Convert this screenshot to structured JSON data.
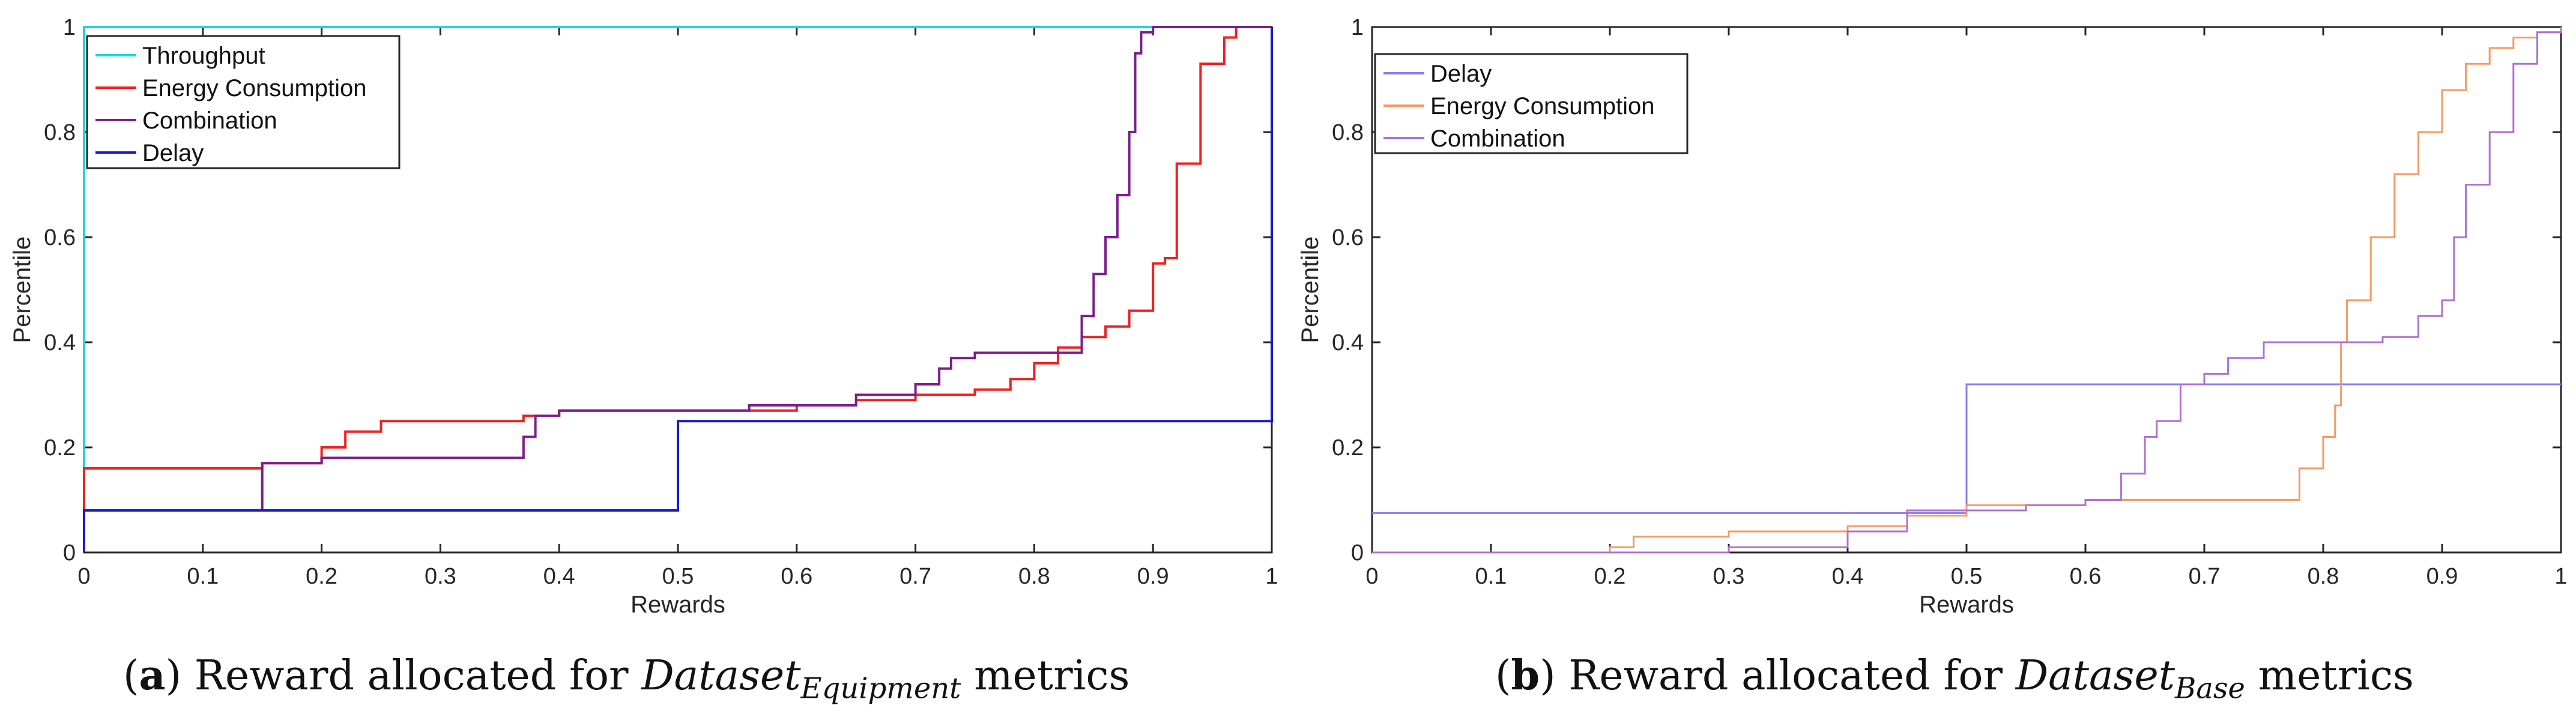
{
  "captions": [
    {
      "label": "a",
      "pre": "Reward allocated for",
      "dataset": "Dataset",
      "sub": "Equipment",
      "post": "metrics"
    },
    {
      "label": "b",
      "pre": "Reward allocated for",
      "dataset": "Dataset",
      "sub": "Base",
      "post": "metrics"
    }
  ],
  "chart_data": [
    {
      "type": "line",
      "subtype": "step-cdf",
      "title": "",
      "xlabel": "Rewards",
      "ylabel": "Percentile",
      "xlim": [
        0,
        1
      ],
      "ylim": [
        0,
        1
      ],
      "xticks": [
        "0",
        "0.1",
        "0.2",
        "0.3",
        "0.4",
        "0.5",
        "0.6",
        "0.7",
        "0.8",
        "0.9",
        "1"
      ],
      "yticks": [
        "0",
        "0.2",
        "0.4",
        "0.6",
        "0.8",
        "1"
      ],
      "legend_position": "top-left",
      "series": [
        {
          "name": "Throughput",
          "color": "#22d4d4",
          "x": [
            0,
            0,
            0.84,
            1,
            1
          ],
          "y": [
            0,
            1,
            1,
            1,
            1
          ]
        },
        {
          "name": "Energy Consumption",
          "color": "#ee2020",
          "x": [
            0,
            0,
            0.15,
            0.2,
            0.22,
            0.25,
            0.37,
            0.4,
            0.56,
            0.6,
            0.65,
            0.7,
            0.75,
            0.78,
            0.8,
            0.82,
            0.84,
            0.86,
            0.88,
            0.9,
            0.91,
            0.92,
            0.94,
            0.96,
            0.97,
            0.98,
            1
          ],
          "y": [
            0,
            0.16,
            0.17,
            0.2,
            0.23,
            0.25,
            0.26,
            0.27,
            0.27,
            0.28,
            0.29,
            0.3,
            0.31,
            0.33,
            0.36,
            0.39,
            0.41,
            0.43,
            0.46,
            0.55,
            0.56,
            0.74,
            0.93,
            0.98,
            1,
            1,
            1
          ]
        },
        {
          "name": "Combination",
          "color": "#7a1f8a",
          "x": [
            0,
            0,
            0.15,
            0.2,
            0.25,
            0.35,
            0.37,
            0.38,
            0.4,
            0.56,
            0.65,
            0.7,
            0.72,
            0.73,
            0.75,
            0.82,
            0.84,
            0.85,
            0.86,
            0.87,
            0.88,
            0.885,
            0.89,
            0.9,
            1
          ],
          "y": [
            0,
            0.08,
            0.17,
            0.18,
            0.18,
            0.18,
            0.22,
            0.26,
            0.27,
            0.28,
            0.3,
            0.32,
            0.35,
            0.37,
            0.38,
            0.38,
            0.45,
            0.53,
            0.6,
            0.68,
            0.8,
            0.95,
            0.99,
            1,
            1
          ]
        },
        {
          "name": "Delay",
          "color": "#1a1acc",
          "x": [
            0,
            0,
            0.5,
            0.5,
            1,
            1
          ],
          "y": [
            0,
            0.08,
            0.08,
            0.25,
            0.25,
            1
          ]
        }
      ]
    },
    {
      "type": "line",
      "subtype": "step-cdf",
      "title": "",
      "xlabel": "Rewards",
      "ylabel": "Percentile",
      "xlim": [
        0,
        1
      ],
      "ylim": [
        0,
        1
      ],
      "xticks": [
        "0",
        "0.1",
        "0.2",
        "0.3",
        "0.4",
        "0.5",
        "0.6",
        "0.7",
        "0.8",
        "0.9",
        "1"
      ],
      "yticks": [
        "0",
        "0.2",
        "0.4",
        "0.6",
        "0.8",
        "1"
      ],
      "legend_position": "top-left",
      "series": [
        {
          "name": "Delay",
          "color": "#8a7ee6",
          "x": [
            0,
            0.5,
            0.5,
            1
          ],
          "y": [
            0.075,
            0.075,
            0.32,
            0.32
          ]
        },
        {
          "name": "Energy Consumption",
          "color": "#f59a62",
          "x": [
            0,
            0.2,
            0.22,
            0.3,
            0.4,
            0.45,
            0.5,
            0.55,
            0.6,
            0.7,
            0.75,
            0.78,
            0.8,
            0.81,
            0.815,
            0.82,
            0.84,
            0.86,
            0.88,
            0.9,
            0.92,
            0.94,
            0.96,
            0.98,
            1
          ],
          "y": [
            0,
            0.01,
            0.03,
            0.04,
            0.05,
            0.07,
            0.09,
            0.09,
            0.1,
            0.1,
            0.1,
            0.16,
            0.22,
            0.28,
            0.4,
            0.48,
            0.6,
            0.72,
            0.8,
            0.88,
            0.93,
            0.96,
            0.98,
            0.99,
            0.99
          ]
        },
        {
          "name": "Combination",
          "color": "#b070d0",
          "x": [
            0,
            0.2,
            0.3,
            0.4,
            0.45,
            0.55,
            0.6,
            0.63,
            0.65,
            0.66,
            0.68,
            0.7,
            0.72,
            0.75,
            0.85,
            0.88,
            0.9,
            0.91,
            0.92,
            0.94,
            0.96,
            0.98,
            1
          ],
          "y": [
            0,
            0,
            0.01,
            0.04,
            0.08,
            0.09,
            0.1,
            0.15,
            0.22,
            0.25,
            0.32,
            0.34,
            0.37,
            0.4,
            0.41,
            0.45,
            0.48,
            0.6,
            0.7,
            0.8,
            0.93,
            0.99,
            1
          ]
        }
      ]
    }
  ]
}
